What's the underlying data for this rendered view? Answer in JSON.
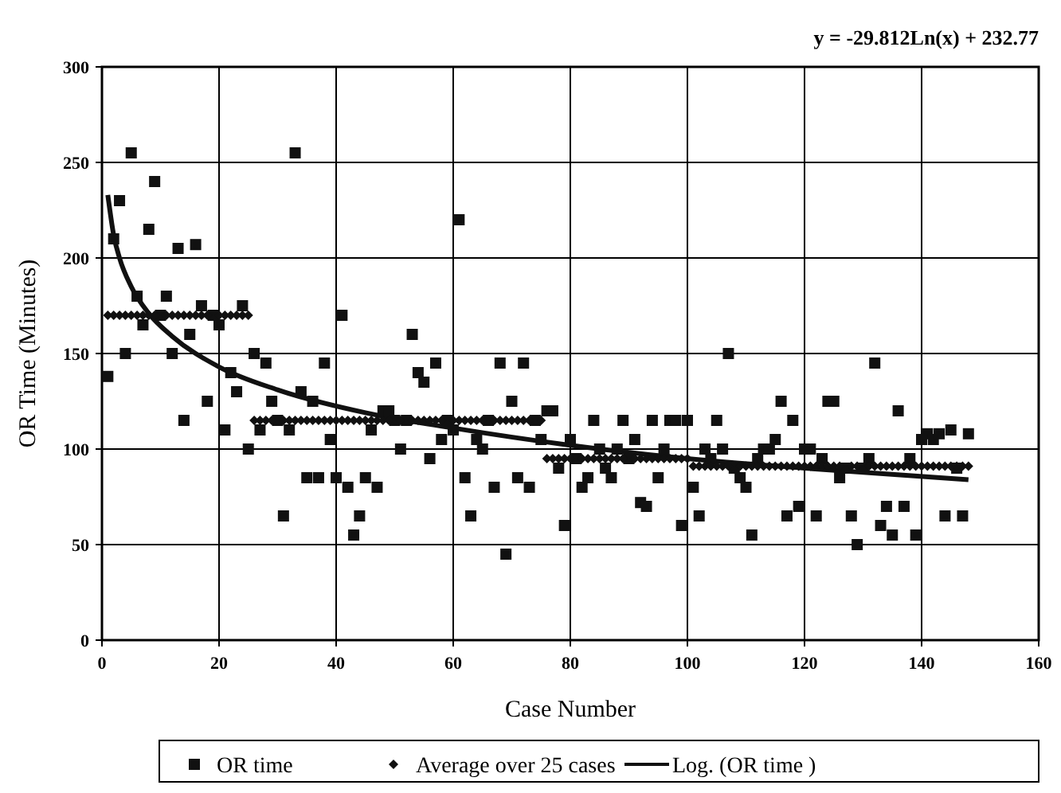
{
  "chart_data": {
    "type": "scatter",
    "xlabel": "Case Number",
    "ylabel": "OR Time (Minutes)",
    "annotations": [
      "y = -29.812Ln(x) + 232.77"
    ],
    "xlim": [
      0,
      160
    ],
    "xticks": [
      0,
      20,
      40,
      60,
      80,
      100,
      120,
      140,
      160
    ],
    "ylim": [
      0,
      300
    ],
    "yticks": [
      0,
      50,
      100,
      150,
      200,
      250,
      300
    ],
    "grid": true,
    "legend": "bottom",
    "x": [
      1,
      2,
      3,
      4,
      5,
      6,
      7,
      8,
      9,
      10,
      11,
      12,
      13,
      14,
      15,
      16,
      17,
      18,
      19,
      20,
      21,
      22,
      23,
      24,
      25,
      26,
      27,
      28,
      29,
      30,
      31,
      32,
      33,
      34,
      35,
      36,
      37,
      38,
      39,
      40,
      41,
      42,
      43,
      44,
      45,
      46,
      47,
      48,
      49,
      50,
      51,
      52,
      53,
      54,
      55,
      56,
      57,
      58,
      59,
      60,
      61,
      62,
      63,
      64,
      65,
      66,
      67,
      68,
      69,
      70,
      71,
      72,
      73,
      74,
      75,
      76,
      77,
      78,
      79,
      80,
      81,
      82,
      83,
      84,
      85,
      86,
      87,
      88,
      89,
      90,
      91,
      92,
      93,
      94,
      95,
      96,
      97,
      98,
      99,
      100,
      101,
      102,
      103,
      104,
      105,
      106,
      107,
      108,
      109,
      110,
      111,
      112,
      113,
      114,
      115,
      116,
      117,
      118,
      119,
      120,
      121,
      122,
      123,
      124,
      125,
      126,
      127,
      128,
      129,
      130,
      131,
      132,
      133,
      134,
      135,
      136,
      137,
      138,
      139,
      140,
      141,
      142,
      143,
      144,
      145,
      146,
      147,
      148
    ],
    "series": [
      {
        "name": "OR time",
        "marker": "square",
        "color": "#111111",
        "values": [
          138,
          210,
          230,
          150,
          255,
          180,
          165,
          215,
          240,
          170,
          180,
          150,
          205,
          115,
          160,
          207,
          175,
          125,
          170,
          165,
          110,
          140,
          130,
          175,
          100,
          150,
          110,
          145,
          125,
          115,
          65,
          110,
          255,
          130,
          85,
          125,
          85,
          145,
          105,
          85,
          170,
          80,
          55,
          65,
          85,
          110,
          80,
          120,
          120,
          115,
          100,
          115,
          160,
          140,
          135,
          95,
          145,
          105,
          115,
          110,
          220,
          85,
          65,
          105,
          100,
          115,
          80,
          145,
          45,
          125,
          85,
          145,
          80,
          115,
          105,
          120,
          120,
          90,
          60,
          105,
          95,
          80,
          85,
          115,
          100,
          90,
          85,
          100,
          115,
          95,
          105,
          72,
          70,
          115,
          85,
          100,
          115,
          115,
          60,
          115,
          80,
          65,
          100,
          95,
          115,
          100,
          150,
          90,
          85,
          80,
          55,
          95,
          100,
          100,
          105,
          125,
          65,
          115,
          70,
          100,
          100,
          65,
          95,
          125,
          125,
          85,
          90,
          65,
          50,
          90,
          95,
          145,
          60,
          70,
          55,
          120,
          70,
          95,
          55,
          105,
          108,
          105,
          108,
          65,
          110,
          90,
          65,
          108
        ]
      },
      {
        "name": "Average over 25 cases",
        "marker": "diamond",
        "color": "#111111",
        "values": [
          170,
          170,
          170,
          170,
          170,
          170,
          170,
          170,
          170,
          null,
          170,
          170,
          170,
          170,
          170,
          170,
          170,
          170,
          null,
          170,
          170,
          170,
          170,
          170,
          170,
          115,
          115,
          115,
          115,
          null,
          115,
          115,
          115,
          115,
          115,
          115,
          115,
          115,
          115,
          115,
          115,
          115,
          115,
          115,
          115,
          115,
          115,
          115,
          115,
          null,
          115,
          null,
          115,
          115,
          115,
          115,
          115,
          115,
          null,
          115,
          115,
          115,
          115,
          115,
          115,
          null,
          115,
          115,
          115,
          115,
          115,
          115,
          115,
          null,
          115,
          95,
          95,
          95,
          95,
          95,
          null,
          95,
          95,
          95,
          95,
          95,
          95,
          95,
          95,
          null,
          95,
          95,
          95,
          95,
          95,
          95,
          95,
          95,
          95,
          95,
          91,
          91,
          91,
          91,
          91,
          91,
          91,
          null,
          91,
          91,
          91,
          91,
          91,
          91,
          91,
          91,
          91,
          91,
          91,
          91,
          91,
          91,
          91,
          91,
          91,
          91,
          null,
          91,
          91,
          null,
          91,
          91,
          91,
          91,
          91,
          91,
          91,
          91,
          91,
          91,
          91,
          91,
          91,
          91,
          91,
          91,
          91,
          91
        ]
      },
      {
        "name": "Log. (OR time )",
        "type": "line",
        "marker": "none",
        "line_style": "solid",
        "color": "#111111",
        "x": [
          1,
          2,
          3,
          5,
          8,
          12,
          20,
          30,
          45,
          60,
          80,
          100,
          120,
          148
        ],
        "values": [
          233,
          212,
          200,
          185,
          171,
          159,
          143,
          131,
          119,
          111,
          102,
          95,
          90,
          84
        ]
      }
    ]
  }
}
